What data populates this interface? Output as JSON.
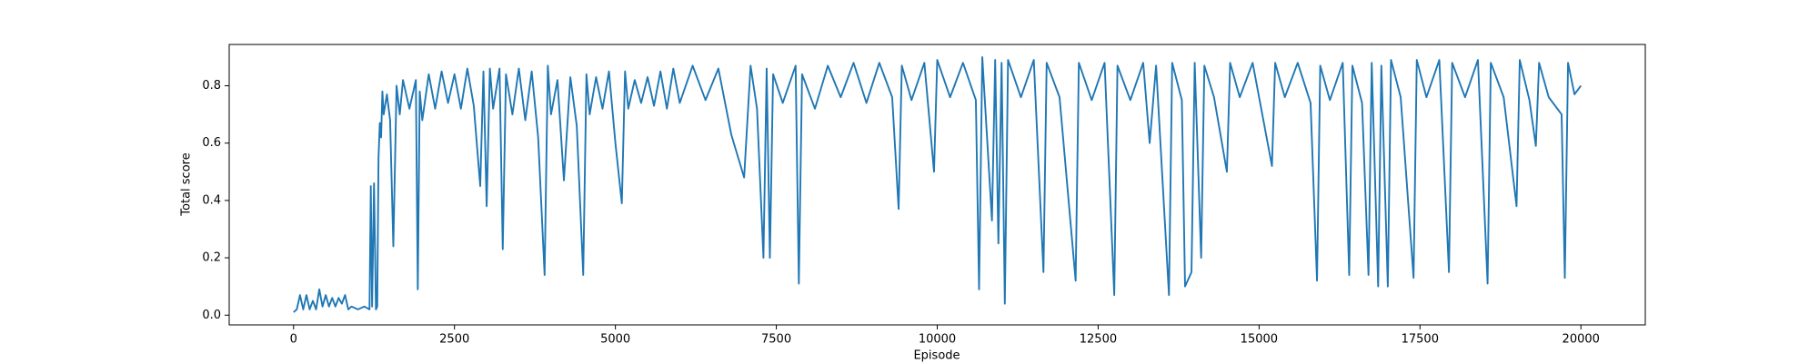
{
  "chart_data": {
    "type": "line",
    "x_label": "Episode",
    "y_label": "Total score",
    "x": [
      0,
      50,
      100,
      150,
      200,
      250,
      300,
      350,
      400,
      450,
      500,
      550,
      600,
      650,
      700,
      750,
      800,
      850,
      900,
      1000,
      1100,
      1180,
      1200,
      1220,
      1250,
      1280,
      1300,
      1320,
      1340,
      1360,
      1380,
      1400,
      1450,
      1500,
      1550,
      1600,
      1650,
      1700,
      1800,
      1900,
      1930,
      1960,
      2000,
      2100,
      2200,
      2300,
      2400,
      2500,
      2600,
      2700,
      2800,
      2900,
      2950,
      3000,
      3050,
      3100,
      3200,
      3250,
      3300,
      3400,
      3500,
      3600,
      3700,
      3800,
      3900,
      3950,
      4000,
      4100,
      4200,
      4300,
      4400,
      4500,
      4550,
      4600,
      4700,
      4800,
      4900,
      5000,
      5100,
      5150,
      5200,
      5300,
      5400,
      5500,
      5600,
      5700,
      5800,
      5900,
      6000,
      6200,
      6400,
      6600,
      6800,
      7000,
      7100,
      7200,
      7300,
      7350,
      7400,
      7450,
      7600,
      7800,
      7850,
      7900,
      8100,
      8300,
      8500,
      8700,
      8900,
      9100,
      9300,
      9400,
      9450,
      9600,
      9800,
      9950,
      10000,
      10200,
      10400,
      10600,
      10650,
      10700,
      10850,
      10900,
      10950,
      11000,
      11050,
      11100,
      11300,
      11500,
      11650,
      11700,
      11900,
      12150,
      12200,
      12400,
      12600,
      12750,
      12800,
      13000,
      13200,
      13300,
      13400,
      13600,
      13650,
      13800,
      13850,
      13950,
      14000,
      14100,
      14150,
      14300,
      14500,
      14550,
      14700,
      14900,
      15200,
      15250,
      15400,
      15600,
      15800,
      15900,
      15950,
      16100,
      16300,
      16400,
      16450,
      16600,
      16700,
      16750,
      16850,
      16900,
      17000,
      17050,
      17200,
      17400,
      17450,
      17600,
      17800,
      17950,
      18000,
      18200,
      18400,
      18550,
      18600,
      18800,
      19000,
      19050,
      19200,
      19300,
      19350,
      19500,
      19700,
      19750,
      19800,
      19900,
      20000
    ],
    "series": [
      {
        "color": "#1f77b4",
        "values": [
          0.01,
          0.02,
          0.07,
          0.02,
          0.07,
          0.02,
          0.05,
          0.02,
          0.09,
          0.03,
          0.07,
          0.03,
          0.06,
          0.03,
          0.06,
          0.04,
          0.07,
          0.02,
          0.03,
          0.02,
          0.03,
          0.02,
          0.45,
          0.03,
          0.46,
          0.02,
          0.03,
          0.55,
          0.67,
          0.62,
          0.78,
          0.7,
          0.77,
          0.68,
          0.24,
          0.8,
          0.7,
          0.82,
          0.72,
          0.82,
          0.09,
          0.78,
          0.68,
          0.84,
          0.72,
          0.85,
          0.74,
          0.84,
          0.72,
          0.86,
          0.73,
          0.45,
          0.85,
          0.38,
          0.86,
          0.72,
          0.86,
          0.23,
          0.84,
          0.7,
          0.86,
          0.68,
          0.85,
          0.62,
          0.14,
          0.87,
          0.7,
          0.82,
          0.47,
          0.83,
          0.66,
          0.14,
          0.84,
          0.7,
          0.83,
          0.72,
          0.85,
          0.6,
          0.39,
          0.85,
          0.72,
          0.82,
          0.74,
          0.83,
          0.73,
          0.85,
          0.72,
          0.86,
          0.74,
          0.87,
          0.75,
          0.86,
          0.63,
          0.48,
          0.87,
          0.72,
          0.2,
          0.86,
          0.2,
          0.84,
          0.74,
          0.87,
          0.11,
          0.84,
          0.72,
          0.87,
          0.76,
          0.88,
          0.74,
          0.88,
          0.76,
          0.37,
          0.87,
          0.75,
          0.88,
          0.5,
          0.89,
          0.76,
          0.88,
          0.75,
          0.09,
          0.9,
          0.33,
          0.89,
          0.25,
          0.88,
          0.04,
          0.89,
          0.76,
          0.89,
          0.15,
          0.88,
          0.76,
          0.12,
          0.88,
          0.75,
          0.88,
          0.07,
          0.87,
          0.75,
          0.88,
          0.6,
          0.87,
          0.07,
          0.88,
          0.75,
          0.1,
          0.15,
          0.88,
          0.2,
          0.87,
          0.76,
          0.5,
          0.88,
          0.76,
          0.88,
          0.52,
          0.88,
          0.76,
          0.88,
          0.74,
          0.12,
          0.87,
          0.75,
          0.88,
          0.14,
          0.87,
          0.74,
          0.14,
          0.88,
          0.1,
          0.87,
          0.1,
          0.89,
          0.76,
          0.13,
          0.89,
          0.76,
          0.89,
          0.15,
          0.88,
          0.76,
          0.89,
          0.11,
          0.88,
          0.76,
          0.38,
          0.89,
          0.75,
          0.59,
          0.88,
          0.76,
          0.7,
          0.13,
          0.88,
          0.77,
          0.8
        ]
      }
    ],
    "xlim": [
      -1000,
      21000
    ],
    "xticks": [
      0,
      2500,
      5000,
      7500,
      10000,
      12500,
      15000,
      17500,
      20000
    ],
    "ylim": [
      -0.034,
      0.944
    ],
    "yticks": [
      {
        "value": 0,
        "label": "0.0"
      },
      0.2,
      0.4,
      0.6,
      0.8
    ],
    "grid": false
  }
}
